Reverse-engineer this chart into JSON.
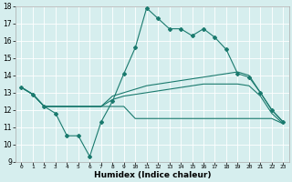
{
  "x": [
    0,
    1,
    2,
    3,
    4,
    5,
    6,
    7,
    8,
    9,
    10,
    11,
    12,
    13,
    14,
    15,
    16,
    17,
    18,
    19,
    20,
    21,
    22,
    23
  ],
  "line1": [
    13.3,
    12.9,
    12.2,
    11.8,
    10.5,
    10.5,
    9.3,
    11.3,
    12.5,
    14.1,
    15.6,
    17.9,
    17.3,
    16.7,
    16.7,
    16.3,
    16.7,
    16.2,
    15.5,
    14.1,
    13.9,
    13.0,
    12.0,
    11.3
  ],
  "line2": [
    13.3,
    12.9,
    12.2,
    12.2,
    12.2,
    12.2,
    12.2,
    12.2,
    12.8,
    13.0,
    13.2,
    13.4,
    13.5,
    13.6,
    13.7,
    13.8,
    13.9,
    14.0,
    14.1,
    14.2,
    14.0,
    13.0,
    12.0,
    11.3
  ],
  "line3": [
    13.3,
    12.9,
    12.2,
    12.2,
    12.2,
    12.2,
    12.2,
    12.2,
    12.6,
    12.8,
    12.9,
    13.0,
    13.1,
    13.2,
    13.3,
    13.4,
    13.5,
    13.5,
    13.5,
    13.5,
    13.4,
    12.8,
    11.8,
    11.2
  ],
  "line4": [
    13.3,
    12.9,
    12.2,
    12.2,
    12.2,
    12.2,
    12.2,
    12.2,
    12.2,
    12.2,
    11.5,
    11.5,
    11.5,
    11.5,
    11.5,
    11.5,
    11.5,
    11.5,
    11.5,
    11.5,
    11.5,
    11.5,
    11.5,
    11.2
  ],
  "line_color": "#1a7a6e",
  "bg_color": "#d6eeee",
  "grid_color": "#ffffff",
  "xlabel": "Humidex (Indice chaleur)",
  "ylim": [
    9,
    18
  ],
  "xlim": [
    -0.5,
    23.5
  ],
  "yticks": [
    9,
    10,
    11,
    12,
    13,
    14,
    15,
    16,
    17,
    18
  ],
  "xticks": [
    0,
    1,
    2,
    3,
    4,
    5,
    6,
    7,
    8,
    9,
    10,
    11,
    12,
    13,
    14,
    15,
    16,
    17,
    18,
    19,
    20,
    21,
    22,
    23
  ]
}
